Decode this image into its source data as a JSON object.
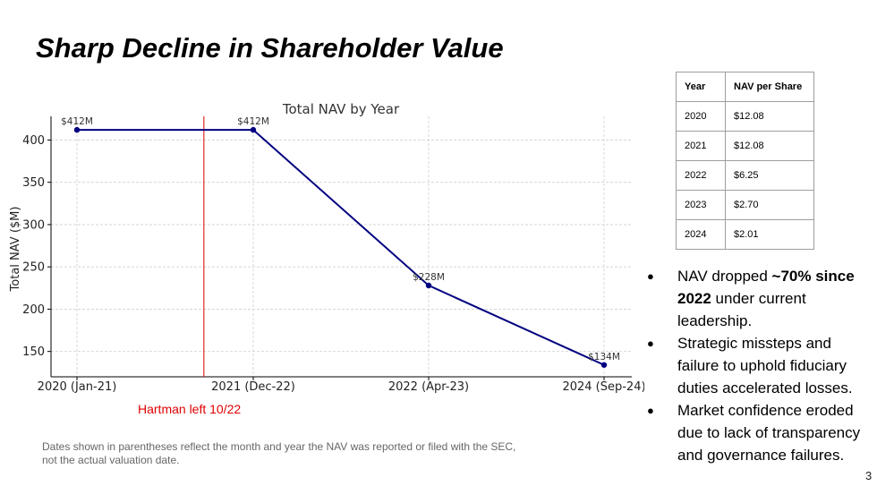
{
  "slide": {
    "title": "Sharp Decline in Shareholder Value",
    "annotation": "Hartman left 10/22",
    "footnote": "Dates shown in parentheses reflect the month and year the NAV was reported or filed with the SEC, not the actual valuation date.",
    "page_number": "3"
  },
  "chart_data": {
    "type": "line",
    "title": "Total NAV by Year",
    "xlabel": "",
    "ylabel": "Total NAV ($M)",
    "categories": [
      "2020 (Jan-21)",
      "2021 (Dec-22)",
      "2022 (Apr-23)",
      "2024 (Sep-24)"
    ],
    "values": [
      412,
      412,
      228,
      134
    ],
    "data_labels": [
      "$412M",
      "$412M",
      "$228M",
      "$134M"
    ],
    "yticks": [
      150,
      200,
      250,
      300,
      350,
      400
    ],
    "ylim": [
      120,
      428
    ],
    "grid": true,
    "line_color": "#000080",
    "marker": "Hartman left 10/22",
    "marker_position": 0.72,
    "marker_color": "#e00000"
  },
  "table": {
    "headers": [
      "Year",
      "NAV per Share"
    ],
    "rows": [
      [
        "2020",
        "$12.08"
      ],
      [
        "2021",
        "$12.08"
      ],
      [
        "2022",
        "$6.25"
      ],
      [
        "2023",
        "$2.70"
      ],
      [
        "2024",
        "$2.01"
      ]
    ]
  },
  "bullets": {
    "b1": {
      "pre": "NAV dropped ",
      "bold": "~70% since 2022",
      "post": " under current leadership."
    },
    "b2": "Strategic missteps and failure to uphold fiduciary duties accelerated losses.",
    "b3": "Market confidence eroded due to lack of transparency and governance failures.",
    "symbol": "●"
  }
}
